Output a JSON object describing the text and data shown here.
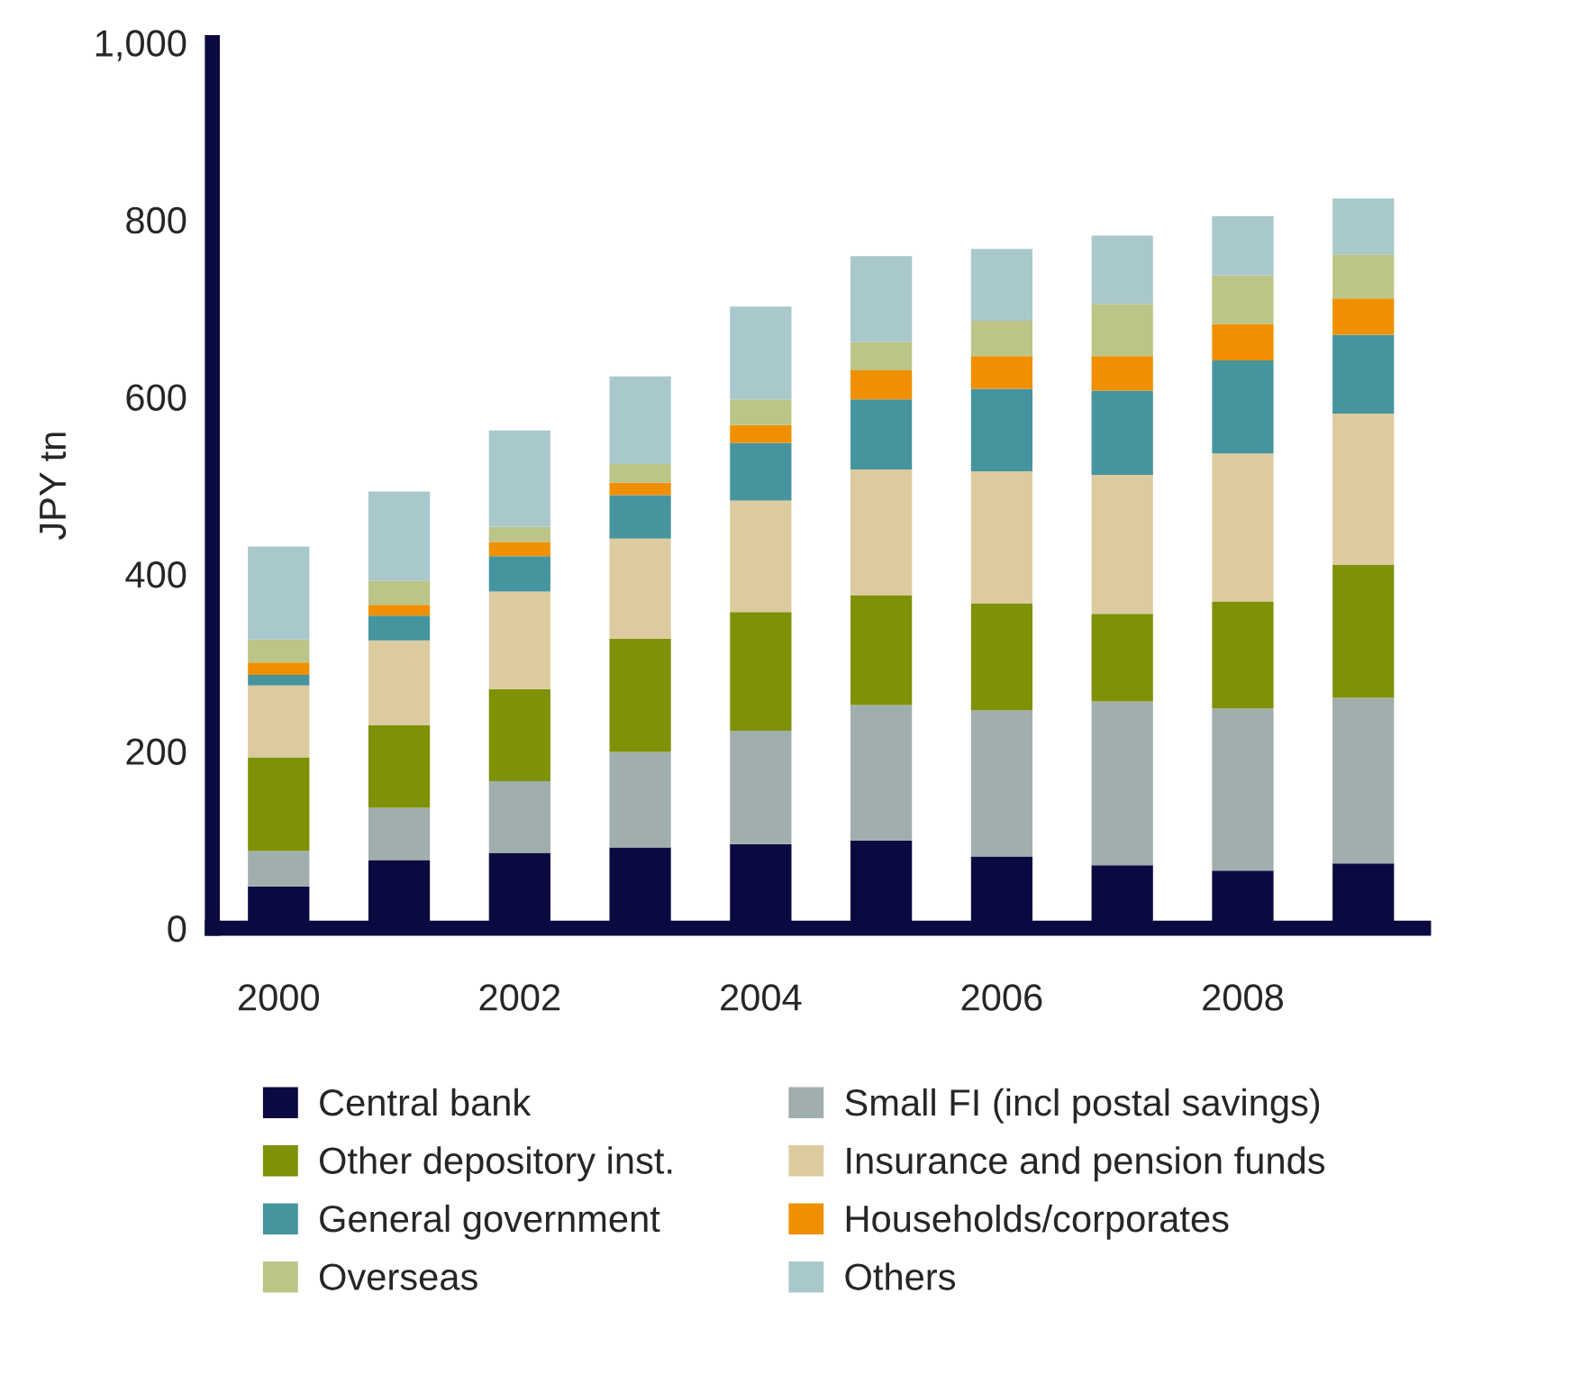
{
  "chart_data": {
    "type": "bar",
    "stacked": true,
    "ylabel": "JPY tn",
    "categories": [
      "2000",
      null,
      "2002",
      null,
      "2004",
      null,
      "2006",
      null,
      "2008",
      null
    ],
    "ylim": [
      0,
      1000
    ],
    "yticks": [
      0,
      200,
      400,
      600,
      800,
      {
        "value": 1000,
        "label": "1,000"
      }
    ],
    "grid": false,
    "legend": "bottom",
    "series": [
      {
        "name": "Central bank",
        "color": "#0b0a40",
        "values": [
          47,
          77,
          85,
          91,
          95,
          99,
          81,
          71,
          65,
          73
        ]
      },
      {
        "name": "Small FI (incl postal savings)",
        "color": "#a1aeae",
        "values": [
          40,
          59,
          81,
          108,
          128,
          153,
          165,
          185,
          183,
          187
        ]
      },
      {
        "name": "Other depository inst.",
        "color": "#7f9107",
        "values": [
          106,
          93,
          104,
          128,
          134,
          124,
          121,
          99,
          121,
          150
        ]
      },
      {
        "name": "Insurance and pension funds",
        "color": "#dccb9f",
        "values": [
          81,
          96,
          110,
          113,
          126,
          142,
          149,
          157,
          167,
          171
        ]
      },
      {
        "name": "General government",
        "color": "#46949e",
        "values": [
          12,
          28,
          40,
          49,
          65,
          79,
          93,
          95,
          105,
          89
        ]
      },
      {
        "name": "Households/corporates",
        "color": "#f09000",
        "values": [
          14,
          12,
          16,
          14,
          20,
          33,
          37,
          39,
          41,
          41
        ]
      },
      {
        "name": "Overseas",
        "color": "#bcc488",
        "values": [
          26,
          27,
          17,
          21,
          29,
          32,
          40,
          59,
          55,
          50
        ]
      },
      {
        "name": "Others",
        "color": "#a8c8cc",
        "values": [
          105,
          101,
          109,
          99,
          105,
          97,
          81,
          77,
          67,
          63
        ]
      }
    ]
  }
}
